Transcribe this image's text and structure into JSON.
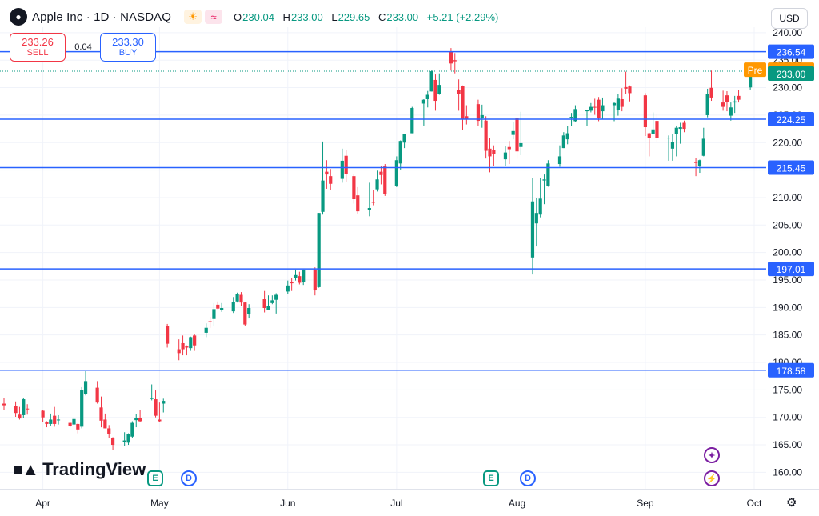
{
  "header": {
    "symbol_title": "Apple Inc · 1D · NASDAQ",
    "apple_icon": "apple-icon",
    "sun_icon": "sun-icon",
    "wave_icon": "wave-icon",
    "ohlc": {
      "o_label": "O",
      "o_value": "230.04",
      "h_label": "H",
      "h_value": "233.00",
      "l_label": "L",
      "l_value": "229.65",
      "c_label": "C",
      "c_value": "233.00",
      "change": "+5.21 (+2.29%)"
    },
    "currency": "USD"
  },
  "trade": {
    "sell_price": "233.26",
    "sell_label": "SELL",
    "buy_price": "233.30",
    "buy_label": "BUY",
    "spread": "0.04"
  },
  "logo_text": "TradingView",
  "colors": {
    "up": "#089981",
    "down": "#f23645",
    "line": "#2962ff",
    "pre": "#ff9800",
    "last": "#089981",
    "grid": "#f0f3fa",
    "text": "#131722"
  },
  "events": [
    {
      "type": "E",
      "icon": "earnings-icon",
      "date": "2024-05-02"
    },
    {
      "type": "D",
      "icon": "dividend-icon",
      "date": "2024-05-10"
    },
    {
      "type": "E",
      "icon": "earnings-icon",
      "date": "2024-08-01"
    },
    {
      "type": "D",
      "icon": "dividend-icon",
      "date": "2024-08-12"
    }
  ],
  "side_icons": [
    "sparkle-icon",
    "lightning-icon"
  ],
  "chart_data": {
    "type": "candlestick",
    "ylim": [
      157,
      241
    ],
    "y_ticks": [
      160,
      165,
      170,
      175,
      180,
      185,
      190,
      195,
      200,
      205,
      210,
      215,
      220,
      225,
      230,
      235,
      240
    ],
    "y_tick_labels": [
      "160.00",
      "165.00",
      "170.00",
      "175.00",
      "180.00",
      "185.00",
      "190.00",
      "195.00",
      "200.00",
      "205.00",
      "210.00",
      "215.00",
      "220.00",
      "225.00",
      "230.00",
      "235.00",
      "240.00"
    ],
    "x_tick_labels": [
      {
        "label": "Apr",
        "date": "2024-04-01"
      },
      {
        "label": "May",
        "date": "2024-05-01"
      },
      {
        "label": "Jun",
        "date": "2024-06-03"
      },
      {
        "label": "Jul",
        "date": "2024-07-01"
      },
      {
        "label": "Aug",
        "date": "2024-08-01"
      },
      {
        "label": "Sep",
        "date": "2024-09-03"
      },
      {
        "label": "Oct",
        "date": "2024-10-01"
      }
    ],
    "horizontal_lines": [
      {
        "value": 236.54,
        "label": "236.54"
      },
      {
        "value": 224.25,
        "label": "224.25"
      },
      {
        "value": 215.45,
        "label": "215.45"
      },
      {
        "value": 197.01,
        "label": "197.01"
      },
      {
        "value": 178.58,
        "label": "178.58"
      }
    ],
    "price_labels": {
      "pre_label": "Pre",
      "pre_value": 233.27,
      "pre_text": "233.27",
      "last_value": 233.0,
      "last_text": "233.00"
    },
    "candles": [
      {
        "date": "2024-03-22",
        "o": 172.5,
        "h": 173.6,
        "l": 171.4,
        "c": 172.2
      },
      {
        "date": "2024-03-25",
        "o": 172.0,
        "h": 172.9,
        "l": 170.1,
        "c": 170.8
      },
      {
        "date": "2024-03-26",
        "o": 170.5,
        "h": 171.9,
        "l": 169.6,
        "c": 169.8
      },
      {
        "date": "2024-03-27",
        "o": 170.4,
        "h": 173.6,
        "l": 169.9,
        "c": 173.3
      },
      {
        "date": "2024-03-28",
        "o": 171.6,
        "h": 172.4,
        "l": 170.5,
        "c": 171.5
      },
      {
        "date": "2024-04-01",
        "o": 171.2,
        "h": 171.3,
        "l": 169.2,
        "c": 170.0
      },
      {
        "date": "2024-04-02",
        "o": 169.1,
        "h": 169.3,
        "l": 168.2,
        "c": 168.8
      },
      {
        "date": "2024-04-03",
        "o": 168.8,
        "h": 170.7,
        "l": 168.5,
        "c": 169.6
      },
      {
        "date": "2024-04-04",
        "o": 170.3,
        "h": 171.9,
        "l": 168.3,
        "c": 168.8
      },
      {
        "date": "2024-04-05",
        "o": 169.6,
        "h": 170.4,
        "l": 168.7,
        "c": 169.6
      },
      {
        "date": "2024-04-08",
        "o": 169.0,
        "h": 169.2,
        "l": 168.2,
        "c": 168.5
      },
      {
        "date": "2024-04-09",
        "o": 168.7,
        "h": 170.1,
        "l": 168.3,
        "c": 169.7
      },
      {
        "date": "2024-04-10",
        "o": 168.8,
        "h": 168.9,
        "l": 167.1,
        "c": 167.8
      },
      {
        "date": "2024-04-11",
        "o": 168.3,
        "h": 175.5,
        "l": 168.0,
        "c": 175.0
      },
      {
        "date": "2024-04-12",
        "o": 174.3,
        "h": 178.4,
        "l": 174.0,
        "c": 176.6
      },
      {
        "date": "2024-04-15",
        "o": 175.4,
        "h": 176.6,
        "l": 172.5,
        "c": 172.7
      },
      {
        "date": "2024-04-16",
        "o": 171.8,
        "h": 173.8,
        "l": 168.2,
        "c": 169.4
      },
      {
        "date": "2024-04-17",
        "o": 169.6,
        "h": 170.7,
        "l": 168.0,
        "c": 168.0
      },
      {
        "date": "2024-04-18",
        "o": 168.0,
        "h": 168.6,
        "l": 166.2,
        "c": 167.0
      },
      {
        "date": "2024-04-19",
        "o": 166.2,
        "h": 166.4,
        "l": 164.1,
        "c": 165.0
      },
      {
        "date": "2024-04-22",
        "o": 165.5,
        "h": 167.3,
        "l": 164.8,
        "c": 165.8
      },
      {
        "date": "2024-04-23",
        "o": 165.4,
        "h": 167.1,
        "l": 165.0,
        "c": 166.9
      },
      {
        "date": "2024-04-24",
        "o": 166.5,
        "h": 169.3,
        "l": 166.2,
        "c": 169.0
      },
      {
        "date": "2024-04-25",
        "o": 169.5,
        "h": 170.6,
        "l": 168.2,
        "c": 169.9
      },
      {
        "date": "2024-04-26",
        "o": 169.9,
        "h": 171.3,
        "l": 169.2,
        "c": 169.3
      },
      {
        "date": "2024-04-29",
        "o": 173.4,
        "h": 176.0,
        "l": 173.1,
        "c": 173.5
      },
      {
        "date": "2024-04-30",
        "o": 173.3,
        "h": 174.9,
        "l": 170.0,
        "c": 170.3
      },
      {
        "date": "2024-05-01",
        "o": 169.6,
        "h": 172.7,
        "l": 169.1,
        "c": 169.3
      },
      {
        "date": "2024-05-02",
        "o": 172.5,
        "h": 173.4,
        "l": 170.9,
        "c": 173.0
      },
      {
        "date": "2024-05-03",
        "o": 186.6,
        "h": 187.0,
        "l": 182.7,
        "c": 183.4
      },
      {
        "date": "2024-05-06",
        "o": 182.4,
        "h": 184.2,
        "l": 180.4,
        "c": 181.7
      },
      {
        "date": "2024-05-07",
        "o": 183.5,
        "h": 184.9,
        "l": 181.3,
        "c": 182.4
      },
      {
        "date": "2024-05-08",
        "o": 182.9,
        "h": 183.1,
        "l": 181.3,
        "c": 182.7
      },
      {
        "date": "2024-05-09",
        "o": 182.6,
        "h": 184.7,
        "l": 182.1,
        "c": 184.6
      },
      {
        "date": "2024-05-10",
        "o": 184.9,
        "h": 185.1,
        "l": 182.1,
        "c": 183.1
      },
      {
        "date": "2024-05-13",
        "o": 185.4,
        "h": 187.1,
        "l": 184.6,
        "c": 186.3
      },
      {
        "date": "2024-05-14",
        "o": 187.5,
        "h": 188.3,
        "l": 186.3,
        "c": 187.4
      },
      {
        "date": "2024-05-15",
        "o": 187.9,
        "h": 190.8,
        "l": 186.6,
        "c": 189.7
      },
      {
        "date": "2024-05-16",
        "o": 190.5,
        "h": 191.1,
        "l": 189.7,
        "c": 189.8
      },
      {
        "date": "2024-05-17",
        "o": 189.5,
        "h": 190.8,
        "l": 189.2,
        "c": 189.9
      },
      {
        "date": "2024-05-20",
        "o": 189.3,
        "h": 191.9,
        "l": 189.0,
        "c": 191.0
      },
      {
        "date": "2024-05-21",
        "o": 191.1,
        "h": 192.7,
        "l": 190.9,
        "c": 192.4
      },
      {
        "date": "2024-05-22",
        "o": 192.3,
        "h": 192.8,
        "l": 190.3,
        "c": 190.9
      },
      {
        "date": "2024-05-23",
        "o": 190.9,
        "h": 191.0,
        "l": 186.6,
        "c": 186.9
      },
      {
        "date": "2024-05-24",
        "o": 188.8,
        "h": 190.6,
        "l": 188.0,
        "c": 189.9
      },
      {
        "date": "2024-05-28",
        "o": 191.5,
        "h": 193.0,
        "l": 189.1,
        "c": 189.9
      },
      {
        "date": "2024-05-29",
        "o": 189.6,
        "h": 192.2,
        "l": 189.5,
        "c": 190.3
      },
      {
        "date": "2024-05-30",
        "o": 190.8,
        "h": 192.2,
        "l": 190.6,
        "c": 191.3
      },
      {
        "date": "2024-05-31",
        "o": 191.4,
        "h": 192.6,
        "l": 188.9,
        "c": 192.3
      },
      {
        "date": "2024-06-03",
        "o": 192.9,
        "h": 194.9,
        "l": 192.5,
        "c": 194.0
      },
      {
        "date": "2024-06-04",
        "o": 194.6,
        "h": 195.3,
        "l": 193.0,
        "c": 194.4
      },
      {
        "date": "2024-06-05",
        "o": 195.4,
        "h": 196.9,
        "l": 194.9,
        "c": 195.9
      },
      {
        "date": "2024-06-06",
        "o": 195.7,
        "h": 196.5,
        "l": 194.2,
        "c": 194.5
      },
      {
        "date": "2024-06-07",
        "o": 194.7,
        "h": 196.9,
        "l": 194.1,
        "c": 196.9
      },
      {
        "date": "2024-06-10",
        "o": 196.9,
        "h": 197.3,
        "l": 192.2,
        "c": 193.1
      },
      {
        "date": "2024-06-11",
        "o": 193.7,
        "h": 207.2,
        "l": 193.6,
        "c": 207.2
      },
      {
        "date": "2024-06-12",
        "o": 207.4,
        "h": 220.2,
        "l": 206.9,
        "c": 213.1
      },
      {
        "date": "2024-06-13",
        "o": 214.7,
        "h": 216.8,
        "l": 211.6,
        "c": 214.2
      },
      {
        "date": "2024-06-14",
        "o": 213.9,
        "h": 215.2,
        "l": 211.3,
        "c": 212.5
      },
      {
        "date": "2024-06-17",
        "o": 213.4,
        "h": 218.9,
        "l": 212.7,
        "c": 216.7
      },
      {
        "date": "2024-06-18",
        "o": 217.6,
        "h": 218.6,
        "l": 212.9,
        "c": 214.3
      },
      {
        "date": "2024-06-20",
        "o": 213.9,
        "h": 214.2,
        "l": 208.9,
        "c": 209.7
      },
      {
        "date": "2024-06-21",
        "o": 210.4,
        "h": 211.9,
        "l": 207.1,
        "c": 207.5
      },
      {
        "date": "2024-06-24",
        "o": 207.7,
        "h": 212.7,
        "l": 206.6,
        "c": 208.1
      },
      {
        "date": "2024-06-25",
        "o": 209.2,
        "h": 211.4,
        "l": 208.6,
        "c": 209.1
      },
      {
        "date": "2024-06-26",
        "o": 211.5,
        "h": 214.9,
        "l": 211.1,
        "c": 213.3
      },
      {
        "date": "2024-06-27",
        "o": 214.7,
        "h": 215.7,
        "l": 212.4,
        "c": 214.1
      },
      {
        "date": "2024-06-28",
        "o": 215.8,
        "h": 216.1,
        "l": 210.3,
        "c": 210.6
      },
      {
        "date": "2024-07-01",
        "o": 212.1,
        "h": 217.5,
        "l": 211.9,
        "c": 216.8
      },
      {
        "date": "2024-07-02",
        "o": 216.2,
        "h": 220.4,
        "l": 215.1,
        "c": 220.3
      },
      {
        "date": "2024-07-03",
        "o": 220.0,
        "h": 221.6,
        "l": 219.0,
        "c": 221.6
      },
      {
        "date": "2024-07-05",
        "o": 221.7,
        "h": 226.5,
        "l": 221.7,
        "c": 226.3
      },
      {
        "date": "2024-07-08",
        "o": 227.1,
        "h": 227.9,
        "l": 223.1,
        "c": 227.8
      },
      {
        "date": "2024-07-09",
        "o": 227.9,
        "h": 229.4,
        "l": 226.4,
        "c": 228.7
      },
      {
        "date": "2024-07-10",
        "o": 229.3,
        "h": 233.1,
        "l": 229.3,
        "c": 232.98
      },
      {
        "date": "2024-07-11",
        "o": 231.4,
        "h": 232.4,
        "l": 225.8,
        "c": 227.6
      },
      {
        "date": "2024-07-12",
        "o": 228.9,
        "h": 232.6,
        "l": 228.7,
        "c": 230.5
      },
      {
        "date": "2024-07-15",
        "o": 236.5,
        "h": 237.2,
        "l": 233.1,
        "c": 234.4
      },
      {
        "date": "2024-07-16",
        "o": 235.0,
        "h": 236.3,
        "l": 232.6,
        "c": 234.8
      },
      {
        "date": "2024-07-17",
        "o": 229.5,
        "h": 231.5,
        "l": 225.8,
        "c": 228.9
      },
      {
        "date": "2024-07-18",
        "o": 230.3,
        "h": 230.4,
        "l": 222.3,
        "c": 224.3
      },
      {
        "date": "2024-07-19",
        "o": 224.8,
        "h": 226.8,
        "l": 223.3,
        "c": 224.3
      },
      {
        "date": "2024-07-22",
        "o": 227.0,
        "h": 227.8,
        "l": 223.1,
        "c": 223.96
      },
      {
        "date": "2024-07-23",
        "o": 224.4,
        "h": 226.9,
        "l": 222.7,
        "c": 225.0
      },
      {
        "date": "2024-07-24",
        "o": 224.0,
        "h": 224.8,
        "l": 217.1,
        "c": 218.5
      },
      {
        "date": "2024-07-25",
        "o": 218.9,
        "h": 220.9,
        "l": 214.6,
        "c": 217.5
      },
      {
        "date": "2024-07-26",
        "o": 218.7,
        "h": 219.5,
        "l": 215.8,
        "c": 217.96
      },
      {
        "date": "2024-07-29",
        "o": 216.96,
        "h": 219.3,
        "l": 215.8,
        "c": 218.2
      },
      {
        "date": "2024-07-30",
        "o": 219.2,
        "h": 220.3,
        "l": 216.1,
        "c": 218.8
      },
      {
        "date": "2024-07-31",
        "o": 221.4,
        "h": 223.8,
        "l": 220.6,
        "c": 222.1
      },
      {
        "date": "2024-08-01",
        "o": 224.4,
        "h": 224.5,
        "l": 217.0,
        "c": 218.4
      },
      {
        "date": "2024-08-02",
        "o": 219.2,
        "h": 225.6,
        "l": 217.7,
        "c": 219.9
      },
      {
        "date": "2024-08-05",
        "o": 199.1,
        "h": 213.5,
        "l": 196.0,
        "c": 209.3
      },
      {
        "date": "2024-08-06",
        "o": 205.3,
        "h": 209.99,
        "l": 201.1,
        "c": 207.2
      },
      {
        "date": "2024-08-07",
        "o": 206.9,
        "h": 213.6,
        "l": 206.4,
        "c": 209.8
      },
      {
        "date": "2024-08-08",
        "o": 213.1,
        "h": 214.2,
        "l": 208.8,
        "c": 213.3
      },
      {
        "date": "2024-08-09",
        "o": 212.1,
        "h": 216.8,
        "l": 211.97,
        "c": 216.2
      },
      {
        "date": "2024-08-12",
        "o": 216.1,
        "h": 219.5,
        "l": 215.6,
        "c": 217.5
      },
      {
        "date": "2024-08-13",
        "o": 219.0,
        "h": 221.9,
        "l": 219.0,
        "c": 221.3
      },
      {
        "date": "2024-08-14",
        "o": 220.6,
        "h": 223.0,
        "l": 219.7,
        "c": 221.7
      },
      {
        "date": "2024-08-15",
        "o": 224.6,
        "h": 225.4,
        "l": 223.0,
        "c": 224.7
      },
      {
        "date": "2024-08-16",
        "o": 223.9,
        "h": 226.8,
        "l": 223.7,
        "c": 226.1
      },
      {
        "date": "2024-08-19",
        "o": 225.7,
        "h": 225.99,
        "l": 223.0,
        "c": 225.9
      },
      {
        "date": "2024-08-20",
        "o": 225.8,
        "h": 227.2,
        "l": 225.5,
        "c": 226.5
      },
      {
        "date": "2024-08-21",
        "o": 226.5,
        "h": 227.98,
        "l": 225.05,
        "c": 226.4
      },
      {
        "date": "2024-08-22",
        "o": 227.8,
        "h": 228.3,
        "l": 223.9,
        "c": 224.5
      },
      {
        "date": "2024-08-23",
        "o": 225.7,
        "h": 228.2,
        "l": 224.3,
        "c": 226.8
      },
      {
        "date": "2024-08-26",
        "o": 226.8,
        "h": 227.3,
        "l": 223.9,
        "c": 227.2
      },
      {
        "date": "2024-08-27",
        "o": 226.0,
        "h": 228.85,
        "l": 224.9,
        "c": 228.0
      },
      {
        "date": "2024-08-28",
        "o": 227.9,
        "h": 229.9,
        "l": 225.7,
        "c": 226.5
      },
      {
        "date": "2024-08-29",
        "o": 230.1,
        "h": 232.9,
        "l": 228.9,
        "c": 229.8
      },
      {
        "date": "2024-08-30",
        "o": 230.2,
        "h": 230.4,
        "l": 227.5,
        "c": 229.0
      },
      {
        "date": "2024-09-03",
        "o": 228.6,
        "h": 229.0,
        "l": 221.2,
        "c": 222.8
      },
      {
        "date": "2024-09-04",
        "o": 221.7,
        "h": 221.8,
        "l": 217.5,
        "c": 220.9
      },
      {
        "date": "2024-09-05",
        "o": 221.6,
        "h": 225.5,
        "l": 221.5,
        "c": 222.4
      },
      {
        "date": "2024-09-06",
        "o": 223.95,
        "h": 225.2,
        "l": 220.0,
        "c": 220.8
      },
      {
        "date": "2024-09-09",
        "o": 220.8,
        "h": 221.3,
        "l": 216.7,
        "c": 220.9
      },
      {
        "date": "2024-09-10",
        "o": 218.9,
        "h": 221.5,
        "l": 216.7,
        "c": 220.1
      },
      {
        "date": "2024-09-11",
        "o": 221.5,
        "h": 223.1,
        "l": 217.5,
        "c": 222.7
      },
      {
        "date": "2024-09-12",
        "o": 222.5,
        "h": 223.6,
        "l": 219.8,
        "c": 222.8
      },
      {
        "date": "2024-09-13",
        "o": 223.6,
        "h": 224.0,
        "l": 221.9,
        "c": 222.5
      },
      {
        "date": "2024-09-16",
        "o": 216.5,
        "h": 217.2,
        "l": 213.9,
        "c": 216.3
      },
      {
        "date": "2024-09-17",
        "o": 215.8,
        "h": 216.9,
        "l": 214.5,
        "c": 216.8
      },
      {
        "date": "2024-09-18",
        "o": 217.6,
        "h": 222.7,
        "l": 217.5,
        "c": 220.7
      },
      {
        "date": "2024-09-19",
        "o": 224.99,
        "h": 229.8,
        "l": 224.6,
        "c": 228.9
      },
      {
        "date": "2024-09-20",
        "o": 229.97,
        "h": 233.1,
        "l": 227.6,
        "c": 228.2
      },
      {
        "date": "2024-09-23",
        "o": 227.3,
        "h": 229.45,
        "l": 225.8,
        "c": 226.5
      },
      {
        "date": "2024-09-24",
        "o": 228.6,
        "h": 229.35,
        "l": 225.7,
        "c": 227.4
      },
      {
        "date": "2024-09-25",
        "o": 224.9,
        "h": 227.3,
        "l": 224.0,
        "c": 226.4
      },
      {
        "date": "2024-09-26",
        "o": 227.3,
        "h": 228.5,
        "l": 225.4,
        "c": 227.5
      },
      {
        "date": "2024-09-27",
        "o": 228.5,
        "h": 229.5,
        "l": 227.3,
        "c": 227.8
      },
      {
        "date": "2024-09-30",
        "o": 230.04,
        "h": 233.0,
        "l": 229.65,
        "c": 233.0
      }
    ]
  }
}
